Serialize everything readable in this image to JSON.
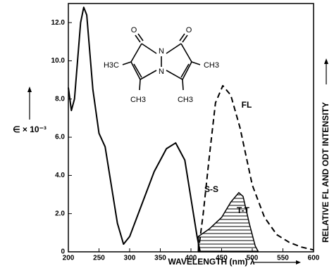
{
  "chart_data": {
    "type": "line",
    "x_label": "WAVELENGTH (nm) λ",
    "y_label": "∈ × 10⁻³",
    "y2_label": "RELATIVE FL AND ODT INTENSITY",
    "xlim": [
      200,
      600
    ],
    "xticks": [
      200,
      250,
      300,
      350,
      400,
      450,
      500,
      550,
      600
    ],
    "ylim": [
      0,
      13
    ],
    "yticks": [
      0,
      {
        "value": 2,
        "label": "2.0"
      },
      {
        "value": 4,
        "label": "4.0"
      },
      {
        "value": 6,
        "label": "6.0"
      },
      {
        "value": 8,
        "label": "8.0"
      },
      {
        "value": 10,
        "label": "10.0"
      },
      {
        "value": 12,
        "label": "12.0"
      }
    ],
    "y2lim": [
      0,
      13
    ],
    "series": [
      {
        "name": "S-S",
        "color": "#000000",
        "style": "solid",
        "x": [
          200,
          205,
          210,
          220,
          225,
          230,
          240,
          250,
          260,
          270,
          280,
          290,
          300,
          320,
          340,
          360,
          375,
          390,
          400,
          410,
          415
        ],
        "values": [
          8.6,
          7.4,
          8.0,
          12.0,
          12.8,
          12.4,
          8.5,
          6.2,
          5.5,
          3.5,
          1.5,
          0.4,
          0.8,
          2.5,
          4.2,
          5.4,
          5.7,
          4.8,
          2.8,
          0.8,
          0
        ]
      },
      {
        "name": "FL",
        "color": "#000000",
        "style": "dashed",
        "axis": "y2",
        "x": [
          412,
          420,
          430,
          440,
          452,
          465,
          480,
          500,
          520,
          540,
          560,
          580,
          600
        ],
        "values": [
          0,
          2.0,
          5.0,
          7.8,
          8.7,
          8.2,
          6.5,
          3.5,
          1.8,
          0.9,
          0.5,
          0.25,
          0.1
        ]
      },
      {
        "name": "T-T",
        "color": "#000000",
        "style": "hatched",
        "axis": "y2",
        "x": [
          412,
          430,
          450,
          465,
          478,
          485,
          495,
          505,
          510
        ],
        "values": [
          0.8,
          1.2,
          1.8,
          2.6,
          3.1,
          2.9,
          1.5,
          0.3,
          0
        ]
      }
    ],
    "molecule_labels": [
      "O",
      "O",
      "N",
      "N",
      "H3C",
      "CH3",
      "CH3",
      "CH3"
    ]
  }
}
